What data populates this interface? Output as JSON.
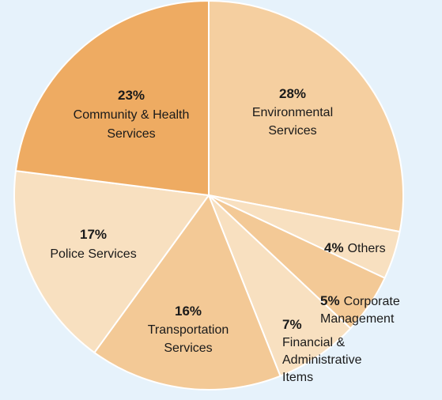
{
  "chart_data": {
    "type": "pie",
    "title": "",
    "slices": [
      {
        "name_lines": [
          "Environmental",
          "Services"
        ],
        "percent_label": "28%",
        "value": 28,
        "color": "#f5cfa0"
      },
      {
        "name_lines": [
          "Others"
        ],
        "percent_label": "4%",
        "value": 4,
        "color": "#f8e0c0"
      },
      {
        "name_lines": [
          "Corporate",
          "Management"
        ],
        "percent_label": "5%",
        "value": 5,
        "color": "#f3c996"
      },
      {
        "name_lines": [
          "Financial &",
          "Administrative",
          "Items"
        ],
        "percent_label": "7%",
        "value": 7,
        "color": "#f8e0c0"
      },
      {
        "name_lines": [
          "Transportation",
          "Services"
        ],
        "percent_label": "16%",
        "value": 16,
        "color": "#f3c996"
      },
      {
        "name_lines": [
          "Police Services"
        ],
        "percent_label": "17%",
        "value": 17,
        "color": "#f8e0c0"
      },
      {
        "name_lines": [
          "Community & Health",
          "Services"
        ],
        "percent_label": "23%",
        "value": 23,
        "color": "#eeab62"
      }
    ],
    "start_angle_deg": 0,
    "direction": "clockwise",
    "slice_border_color": "#ffffff"
  }
}
